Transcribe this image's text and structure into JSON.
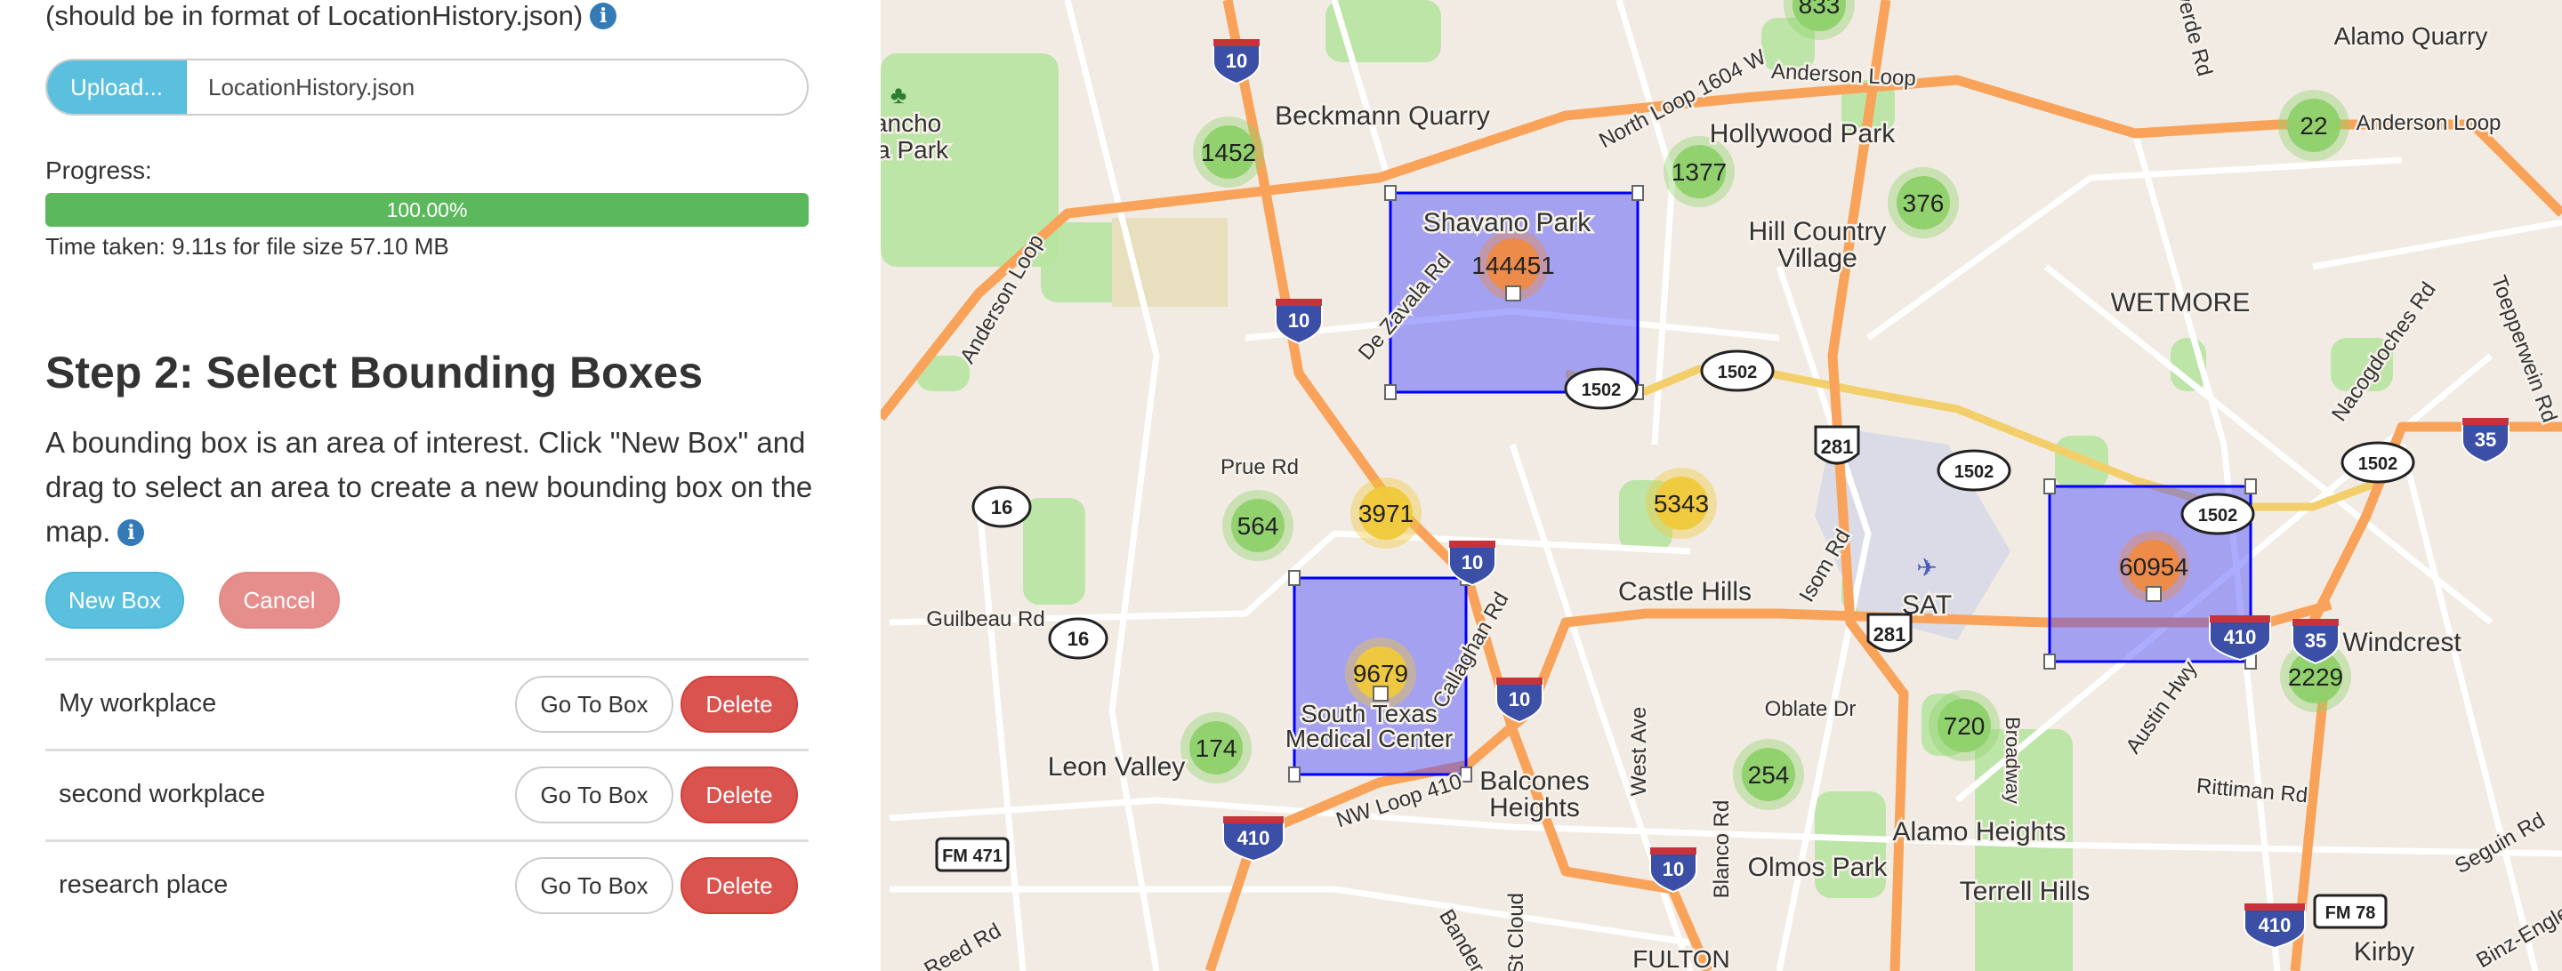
{
  "upload": {
    "format_note": "(should be in format of LocationHistory.json)",
    "info_icon": "info-icon",
    "button_label": "Upload...",
    "file_name": "LocationHistory.json"
  },
  "progress": {
    "label": "Progress:",
    "percent": 100,
    "percent_text": "100.00%",
    "time_taken": "Time taken: 9.11s for file size 57.10 MB",
    "bar_color": "#5cb85c"
  },
  "step2": {
    "heading": "Step 2: Select Bounding Boxes",
    "description": "A bounding box is an area of interest. Click \"New Box\" and drag to select an area to create a new bounding box on the map.",
    "new_box_label": "New Box",
    "cancel_label": "Cancel"
  },
  "boxes": [
    {
      "name": "My workplace",
      "goto_label": "Go To Box",
      "delete_label": "Delete"
    },
    {
      "name": "second workplace",
      "goto_label": "Go To Box",
      "delete_label": "Delete"
    },
    {
      "name": "research place",
      "goto_label": "Go To Box",
      "delete_label": "Delete"
    }
  ],
  "map": {
    "box_color": "#0000ff",
    "clusters": [
      {
        "count": "144451",
        "level": "orange"
      },
      {
        "count": "9679",
        "level": "yellow"
      },
      {
        "count": "60954",
        "level": "orange"
      },
      {
        "count": "1452",
        "level": "green"
      },
      {
        "count": "1377",
        "level": "green"
      },
      {
        "count": "376",
        "level": "green"
      },
      {
        "count": "833",
        "level": "green"
      },
      {
        "count": "22",
        "level": "green"
      },
      {
        "count": "564",
        "level": "green"
      },
      {
        "count": "174",
        "level": "green"
      },
      {
        "count": "720",
        "level": "green"
      },
      {
        "count": "254",
        "level": "green"
      },
      {
        "count": "2229",
        "level": "green"
      },
      {
        "count": "3971",
        "level": "yellow"
      },
      {
        "count": "5343",
        "level": "yellow"
      }
    ],
    "cluster_colors": {
      "green": "#8ed16b",
      "yellow": "#f0c93a",
      "orange": "#ee8a45"
    },
    "places": [
      "Beckmann Quarry",
      "Rancho",
      "ana Park",
      "Hollywood Park",
      "Hill Country",
      "Village",
      "WETMORE",
      "Alamo Quarry",
      "Shavano Park",
      "Castle Hills",
      "Leon Valley",
      "South Texas",
      "Medical Center",
      "Balcones",
      "Heights",
      "Alamo Heights",
      "Olmos Park",
      "Terrell Hills",
      "Windcrest",
      "Kirby",
      "SAT",
      "FULTON"
    ],
    "roads": [
      "North Loop 1604 W",
      "Anderson Loop",
      "Anderson Loop",
      "Anderson Loop",
      "De Zavala Rd",
      "Prue Rd",
      "Guilbeau Rd",
      "NW Loop 410",
      "Callaghan Rd",
      "West Ave",
      "Blanco Rd",
      "St Cloud",
      "Bandera",
      "Oblate Dr",
      "Isom Rd",
      "Broadway",
      "Austin Hwy",
      "Rittiman Rd",
      "Nacogdoches Rd",
      "Toepperwein Rd",
      "Seguin Rd",
      "Binz-Engle",
      "Reed Rd",
      "verde Rd"
    ],
    "shields": [
      {
        "type": "interstate",
        "text": "10"
      },
      {
        "type": "interstate",
        "text": "10"
      },
      {
        "type": "interstate",
        "text": "10"
      },
      {
        "type": "interstate",
        "text": "10"
      },
      {
        "type": "interstate",
        "text": "10"
      },
      {
        "type": "interstate",
        "text": "410"
      },
      {
        "type": "interstate",
        "text": "410"
      },
      {
        "type": "interstate",
        "text": "410"
      },
      {
        "type": "interstate",
        "text": "35"
      },
      {
        "type": "interstate",
        "text": "35"
      },
      {
        "type": "us",
        "text": "281"
      },
      {
        "type": "us",
        "text": "281"
      },
      {
        "type": "state",
        "text": "1502"
      },
      {
        "type": "state",
        "text": "1502"
      },
      {
        "type": "state",
        "text": "1502"
      },
      {
        "type": "state",
        "text": "1502"
      },
      {
        "type": "state",
        "text": "1502"
      },
      {
        "type": "state",
        "text": "16"
      },
      {
        "type": "state",
        "text": "16"
      },
      {
        "type": "fm",
        "text": "FM 471"
      },
      {
        "type": "fm",
        "text": "FM 78"
      }
    ]
  }
}
